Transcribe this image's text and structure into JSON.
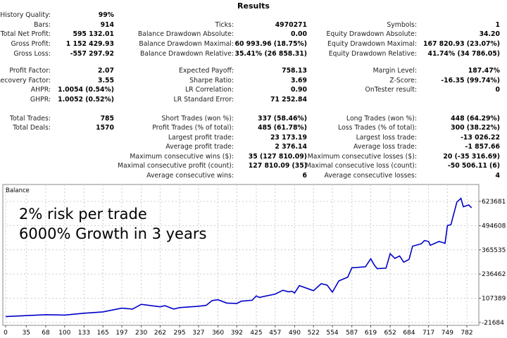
{
  "title": "Results",
  "rows": [
    [
      [
        "History Quality:",
        "99%"
      ],
      null,
      null
    ],
    [
      [
        "Bars:",
        "914"
      ],
      [
        "Ticks:",
        "4970271"
      ],
      [
        "Symbols:",
        "1"
      ]
    ],
    [
      [
        "Total Net Profit:",
        "595 132.01"
      ],
      [
        "Balance Drawdown Absolute:",
        "0.00"
      ],
      [
        "Equity Drawdown Absolute:",
        "34.20"
      ]
    ],
    [
      [
        "Gross Profit:",
        "1 152 429.93"
      ],
      [
        "Balance Drawdown Maximal:",
        "60 993.96 (18.75%)"
      ],
      [
        "Equity Drawdown Maximal:",
        "167 820.93 (23.07%)"
      ]
    ],
    [
      [
        "Gross Loss:",
        "-557 297.92"
      ],
      [
        "Balance Drawdown Relative:",
        "35.41% (26 858.31)"
      ],
      [
        "Equity Drawdown Relative:",
        "41.74% (34 786.05)"
      ]
    ],
    [
      [
        "Profit Factor:",
        "2.07"
      ],
      [
        "Expected Payoff:",
        "758.13"
      ],
      [
        "Margin Level:",
        "187.47%"
      ]
    ],
    [
      [
        "Recovery Factor:",
        "3.55"
      ],
      [
        "Sharpe Ratio:",
        "3.69"
      ],
      [
        "Z-Score:",
        "-16.35 (99.74%)"
      ]
    ],
    [
      [
        "AHPR:",
        "1.0054 (0.54%)"
      ],
      [
        "LR Correlation:",
        "0.90"
      ],
      [
        "OnTester result:",
        "0"
      ]
    ],
    [
      [
        "GHPR:",
        "1.0052 (0.52%)"
      ],
      [
        "LR Standard Error:",
        "71 252.84"
      ],
      null
    ],
    [
      [
        "Total Trades:",
        "785"
      ],
      [
        "Short Trades (won %):",
        "337 (58.46%)"
      ],
      [
        "Long Trades (won %):",
        "448 (64.29%)"
      ]
    ],
    [
      [
        "Total Deals:",
        "1570"
      ],
      [
        "Profit Trades (% of total):",
        "485 (61.78%)"
      ],
      [
        "Loss Trades (% of total):",
        "300 (38.22%)"
      ]
    ],
    [
      null,
      [
        "Largest profit trade:",
        "23 173.19"
      ],
      [
        "Largest loss trade:",
        "-13 026.22"
      ]
    ],
    [
      null,
      [
        "Average profit trade:",
        "2 376.14"
      ],
      [
        "Average loss trade:",
        "-1 857.66"
      ]
    ],
    [
      null,
      [
        "Maximum consecutive wins ($):",
        "35 (127 810.09)"
      ],
      [
        "Maximum consecutive losses ($):",
        "20 (-35 316.69)"
      ]
    ],
    [
      null,
      [
        "Maximal consecutive profit (count):",
        "127 810.09 (35)"
      ],
      [
        "Maximal consecutive loss (count):",
        "-50 506.11 (6)"
      ]
    ],
    [
      null,
      [
        "Average consecutive wins:",
        "6"
      ],
      [
        "Average consecutive losses:",
        "4"
      ]
    ]
  ],
  "overlay": {
    "line1": "2% risk per trade",
    "line2": "6000% Growth in 3 years"
  },
  "chart_data": {
    "type": "line",
    "title": "Balance",
    "line_color": "#0000c8",
    "grid": true,
    "xticks": [
      0,
      35,
      68,
      100,
      133,
      165,
      197,
      230,
      262,
      295,
      327,
      360,
      392,
      425,
      457,
      490,
      522,
      554,
      587,
      619,
      652,
      684,
      717,
      749,
      782
    ],
    "yticks": [
      -21684,
      107389,
      236462,
      365535,
      494608,
      623681
    ],
    "series": [
      {
        "x": [
          0,
          35,
          68,
          100,
          133,
          165,
          197,
          215,
          230,
          262,
          270,
          285,
          295,
          327,
          340,
          350,
          360,
          375,
          392,
          400,
          418,
          425,
          430,
          457,
          470,
          480,
          485,
          490,
          498,
          522,
          535,
          545,
          554,
          565,
          580,
          587,
          610,
          619,
          625,
          630,
          645,
          652,
          660,
          668,
          675,
          684,
          690,
          705,
          710,
          717,
          720,
          735,
          745,
          749,
          755,
          765,
          772,
          776,
          785,
          790
        ],
        "y": [
          10000,
          15000,
          20000,
          18000,
          28000,
          35000,
          55000,
          50000,
          75000,
          62000,
          68000,
          50000,
          58000,
          65000,
          70000,
          95000,
          100000,
          82000,
          80000,
          92000,
          97000,
          120000,
          112000,
          130000,
          150000,
          142000,
          145000,
          136000,
          175000,
          148000,
          185000,
          178000,
          140000,
          200000,
          220000,
          270000,
          275000,
          318000,
          285000,
          265000,
          268000,
          345000,
          320000,
          333000,
          300000,
          315000,
          385000,
          398000,
          415000,
          410000,
          390000,
          410000,
          400000,
          495000,
          500000,
          620000,
          640000,
          595000,
          605000,
          590000
        ]
      }
    ]
  }
}
